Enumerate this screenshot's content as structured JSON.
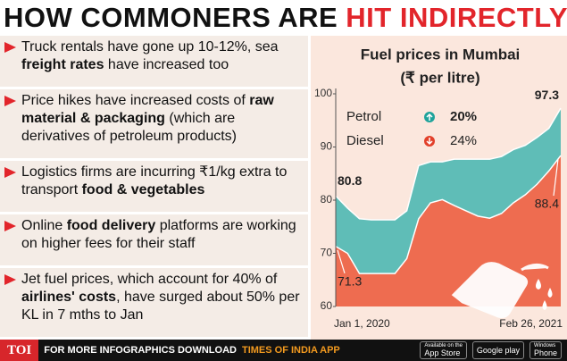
{
  "header": {
    "title": [
      {
        "text": "HOW COMMONERS ARE ",
        "highlight": false
      },
      {
        "text": "HIT INDIRECTLY",
        "highlight": true
      }
    ]
  },
  "bullets": [
    {
      "segments": [
        {
          "text": "Truck rentals have gone up 10-12%, sea ",
          "bold": false
        },
        {
          "text": "freight rates",
          "bold": true
        },
        {
          "text": " have increased too",
          "bold": false
        }
      ]
    },
    {
      "segments": [
        {
          "text": "Price hikes have increased costs of ",
          "bold": false
        },
        {
          "text": "raw material & packaging",
          "bold": true
        },
        {
          "text": " (which are derivatives of petroleum products)",
          "bold": false
        }
      ]
    },
    {
      "segments": [
        {
          "text": "Logistics firms are incurring ₹1/kg extra to transport ",
          "bold": false
        },
        {
          "text": "food & vegetables",
          "bold": true
        }
      ]
    },
    {
      "segments": [
        {
          "text": "Online ",
          "bold": false
        },
        {
          "text": "food delivery",
          "bold": true
        },
        {
          "text": " platforms are working on higher fees for their staff",
          "bold": false
        }
      ]
    },
    {
      "segments": [
        {
          "text": "Jet fuel prices, which account for 40% of ",
          "bold": false
        },
        {
          "text": "airlines' costs",
          "bold": true
        },
        {
          "text": ", have surged about 50% per KL in 7 mths to Jan",
          "bold": false
        }
      ]
    }
  ],
  "chart_data": {
    "type": "area",
    "title": "Fuel prices in Mumbai",
    "subtitle": "(₹ per litre)",
    "categories": [
      "Jan 1, 2020",
      null,
      null,
      null,
      null,
      null,
      null,
      null,
      null,
      null,
      null,
      null,
      null,
      null,
      null,
      null,
      null,
      null,
      null,
      "Feb 26, 2021"
    ],
    "series": [
      {
        "name": "Petrol",
        "change": "20%",
        "color": "#5fbdb7",
        "marker_color": "#1fa39b",
        "values": [
          80.8,
          78.5,
          76.5,
          76.3,
          76.3,
          76.3,
          78,
          86.5,
          87.2,
          87.2,
          87.7,
          87.7,
          87.7,
          87.7,
          88.2,
          89.5,
          90.3,
          91.8,
          93.5,
          97.3
        ]
      },
      {
        "name": "Diesel",
        "change": "24%",
        "color": "#ee6c50",
        "marker_color": "#e2402a",
        "values": [
          71.3,
          70,
          66.2,
          66.2,
          66.2,
          66.2,
          69,
          76.5,
          79.5,
          80.1,
          79,
          78,
          77,
          76.6,
          77.5,
          79.5,
          81,
          83,
          85.5,
          88.4
        ]
      }
    ],
    "ylim": [
      60,
      100
    ],
    "yticks": [
      60,
      70,
      80,
      90,
      100
    ],
    "grid": false
  },
  "footer": {
    "logo": "TOI",
    "text": "FOR MORE INFOGRAPHICS DOWNLOAD",
    "app": "TIMES OF INDIA APP",
    "badges": [
      {
        "top": "Available on the",
        "main": "App Store"
      },
      {
        "main": "Google play"
      },
      {
        "top": "Windows",
        "main": "Phone"
      }
    ]
  }
}
